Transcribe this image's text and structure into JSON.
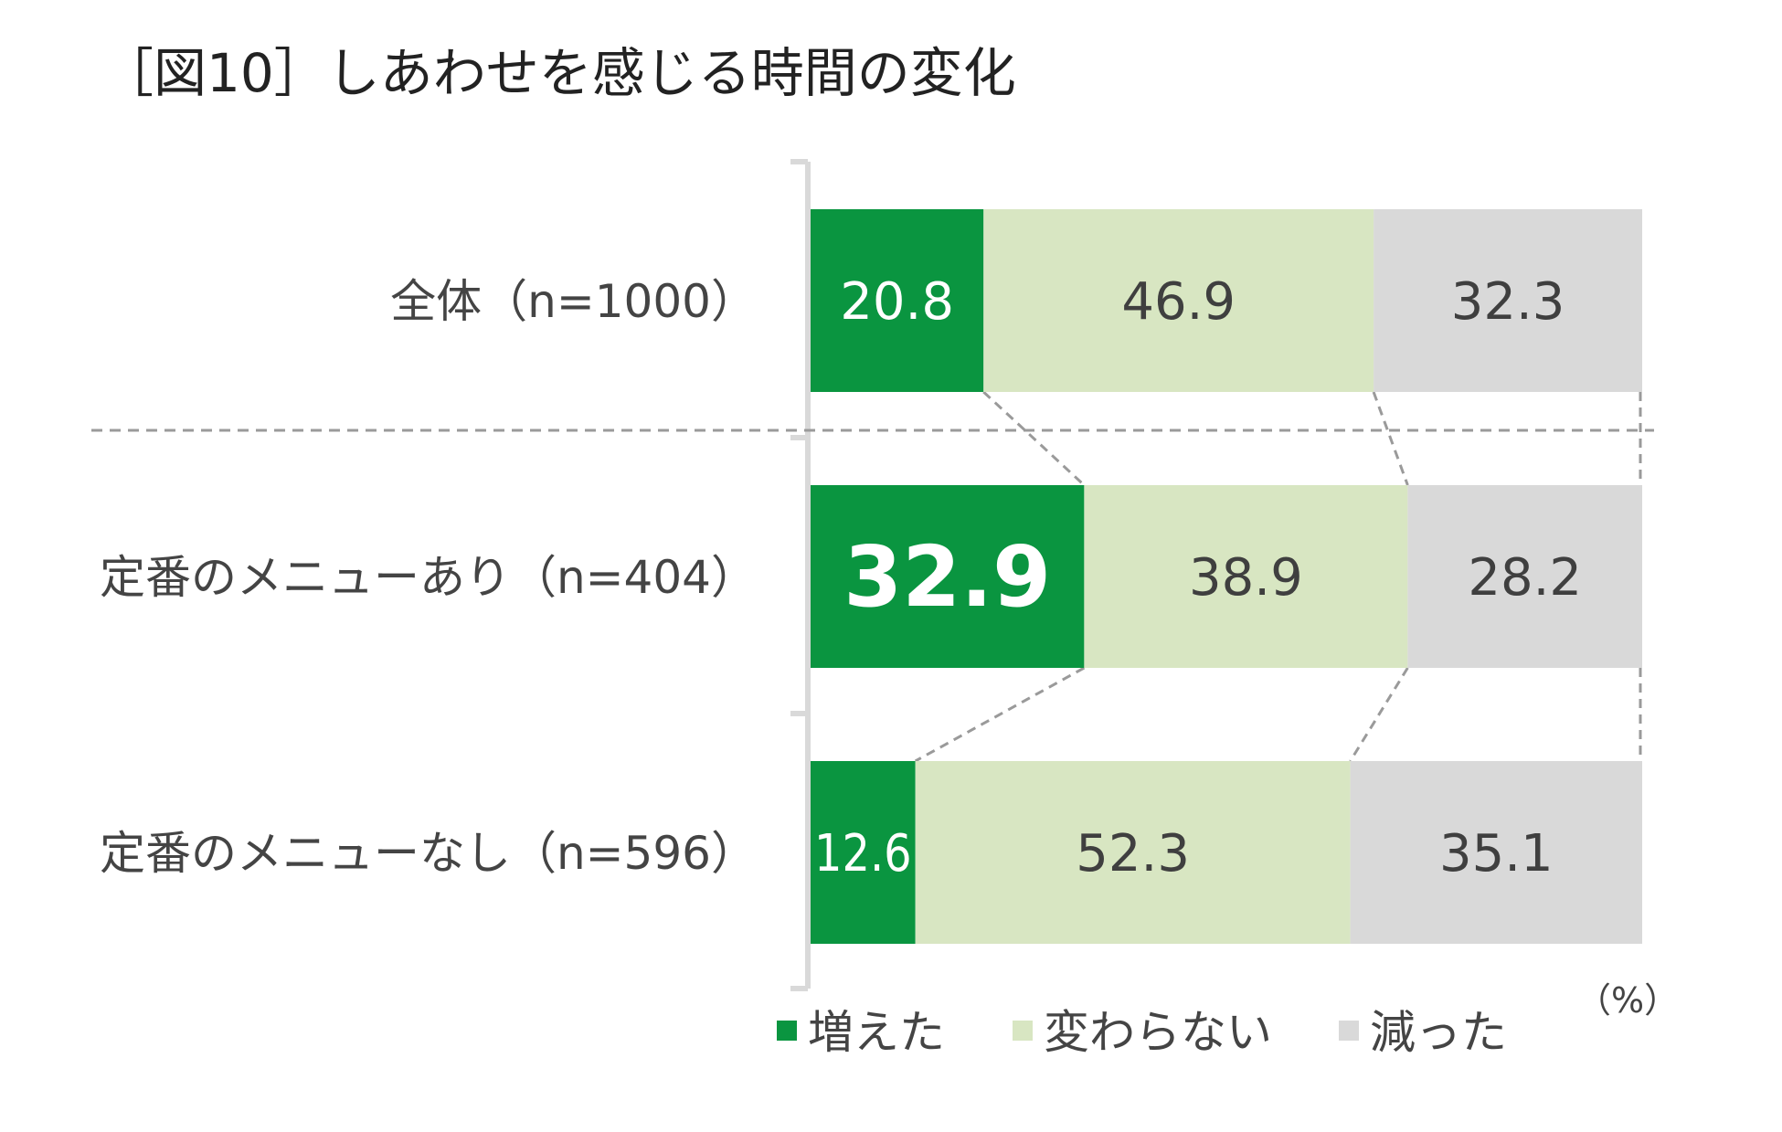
{
  "chart_data": {
    "type": "bar",
    "stacked": true,
    "orientation": "horizontal",
    "title": "［図10］しあわせを感じる時間の変化",
    "unit_label": "（%）",
    "categories": [
      "全体（n=1000）",
      "定番のメニューあり（n=404）",
      "定番のメニューなし（n=596）"
    ],
    "series": [
      {
        "name": "増えた",
        "values": [
          20.8,
          32.9,
          12.6
        ]
      },
      {
        "name": "変わらない",
        "values": [
          46.9,
          38.9,
          52.3
        ]
      },
      {
        "name": "減った",
        "values": [
          32.3,
          28.2,
          35.1
        ]
      }
    ],
    "value_labels": [
      [
        "20.8",
        "46.9",
        "32.3"
      ],
      [
        "32.9",
        "38.9",
        "28.2"
      ],
      [
        "12.6",
        "52.3",
        "35.1"
      ]
    ],
    "highlight": {
      "row": 1,
      "series": 0
    },
    "xlim": [
      0,
      100
    ],
    "grid": false,
    "legend_position": "bottom",
    "colors": {
      "series": [
        "#0a9540",
        "#d8e6c2",
        "#d9d9d9"
      ],
      "text_on_dark": "#ffffff",
      "text_on_light": "#3f3f3f",
      "axis": "#d9d9d9",
      "dashed_line": "#9a9a9a"
    }
  }
}
